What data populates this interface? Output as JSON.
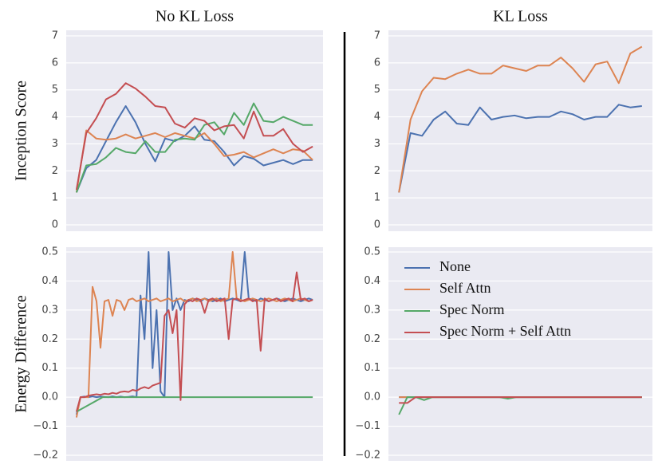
{
  "chart_data": [
    {
      "type": "line",
      "title": "No KL Loss",
      "ylabel": "Inception Score",
      "ylim": [
        0,
        7
      ],
      "yticks": [
        0,
        1,
        2,
        3,
        4,
        5,
        6,
        7
      ],
      "grid": true,
      "series": [
        {
          "name": "None",
          "color": "#4c72b0",
          "values": [
            1.2,
            2.1,
            2.4,
            3.1,
            3.8,
            4.4,
            3.8,
            3.0,
            2.35,
            3.2,
            3.1,
            3.3,
            3.65,
            3.15,
            3.1,
            2.7,
            2.2,
            2.55,
            2.45,
            2.2,
            2.3,
            2.4,
            2.25,
            2.4,
            2.4
          ]
        },
        {
          "name": "Self Attn",
          "color": "#dd8452",
          "values": [
            1.2,
            3.5,
            3.2,
            3.15,
            3.2,
            3.35,
            3.2,
            3.3,
            3.4,
            3.25,
            3.4,
            3.3,
            3.2,
            3.4,
            3.0,
            2.55,
            2.6,
            2.7,
            2.5,
            2.65,
            2.8,
            2.65,
            2.8,
            2.75,
            2.4
          ]
        },
        {
          "name": "Spec Norm",
          "color": "#55a868",
          "values": [
            1.2,
            2.2,
            2.25,
            2.5,
            2.85,
            2.7,
            2.65,
            3.1,
            2.7,
            2.7,
            3.15,
            3.2,
            3.15,
            3.7,
            3.8,
            3.35,
            4.15,
            3.7,
            4.5,
            3.85,
            3.8,
            4.0,
            3.85,
            3.7,
            3.7
          ]
        },
        {
          "name": "Spec Norm + Self Attn",
          "color": "#c44e52",
          "values": [
            1.3,
            3.4,
            3.95,
            4.65,
            4.85,
            5.25,
            5.05,
            4.75,
            4.4,
            4.35,
            3.75,
            3.6,
            3.95,
            3.85,
            3.5,
            3.65,
            3.7,
            3.2,
            4.2,
            3.3,
            3.3,
            3.55,
            3.0,
            2.7,
            2.9
          ]
        }
      ]
    },
    {
      "type": "line",
      "title": "KL Loss",
      "ylim": [
        0,
        7
      ],
      "yticks": [
        0,
        1,
        2,
        3,
        4,
        5,
        6,
        7
      ],
      "grid": true,
      "series": [
        {
          "name": "None",
          "color": "#4c72b0",
          "values": [
            1.2,
            3.4,
            3.3,
            3.9,
            4.2,
            3.75,
            3.7,
            4.35,
            3.9,
            4.0,
            4.05,
            3.95,
            4.0,
            4.0,
            4.2,
            4.1,
            3.9,
            4.0,
            4.0,
            4.45,
            4.35,
            4.4
          ]
        },
        {
          "name": "Self Attn",
          "color": "#dd8452",
          "values": [
            1.2,
            3.9,
            4.95,
            5.45,
            5.4,
            5.6,
            5.75,
            5.6,
            5.6,
            5.9,
            5.8,
            5.7,
            5.9,
            5.9,
            6.2,
            5.8,
            5.3,
            5.95,
            6.05,
            5.25,
            6.35,
            6.6
          ]
        }
      ]
    },
    {
      "type": "line",
      "ylabel": "Energy Difference",
      "ylim": [
        -0.2,
        0.5
      ],
      "grid": true,
      "yticks": [
        {
          "value": -0.2,
          "label": "−0.2"
        },
        {
          "value": -0.1,
          "label": "−0.1"
        },
        {
          "value": 0,
          "label": "0.0"
        },
        {
          "value": 0.1,
          "label": "0.1"
        },
        {
          "value": 0.2,
          "label": "0.2"
        },
        {
          "value": 0.3,
          "label": "0.3"
        },
        {
          "value": 0.4,
          "label": "0.4"
        },
        {
          "value": 0.5,
          "label": "0.5"
        }
      ],
      "series": [
        {
          "name": "None",
          "color": "#4c72b0",
          "values": [
            -0.06,
            0.0,
            0.002,
            0.0,
            0.003,
            0.0,
            0.002,
            0.001,
            0.0,
            0.003,
            0.0,
            0.002,
            0.0,
            0.001,
            0.003,
            0.0,
            0.35,
            0.2,
            0.5,
            0.1,
            0.3,
            0.02,
            0.0,
            0.5,
            0.3,
            0.34,
            0.3,
            0.335,
            0.33,
            0.34,
            0.335,
            0.33,
            0.34,
            0.335,
            0.33,
            0.335,
            0.34,
            0.33,
            0.335,
            0.34,
            0.335,
            0.33,
            0.5,
            0.34,
            0.335,
            0.33,
            0.34,
            0.335,
            0.33,
            0.335,
            0.34,
            0.335,
            0.33,
            0.335,
            0.34,
            0.335,
            0.33,
            0.335,
            0.34,
            0.335
          ]
        },
        {
          "name": "Self Attn",
          "color": "#dd8452",
          "values": [
            -0.07,
            0.0,
            0.0,
            0.0,
            0.38,
            0.33,
            0.17,
            0.33,
            0.335,
            0.28,
            0.335,
            0.33,
            0.3,
            0.335,
            0.34,
            0.33,
            0.335,
            0.34,
            0.33,
            0.335,
            0.34,
            0.33,
            0.335,
            0.34,
            0.33,
            0.335,
            0.34,
            0.33,
            0.335,
            0.34,
            0.33,
            0.335,
            0.34,
            0.33,
            0.335,
            0.34,
            0.33,
            0.335,
            0.34,
            0.5,
            0.34,
            0.335,
            0.33,
            0.335,
            0.34,
            0.335,
            0.33,
            0.335,
            0.34,
            0.335,
            0.33,
            0.335,
            0.34,
            0.335,
            0.33,
            0.335,
            0.34,
            0.335,
            0.33,
            0.335
          ]
        },
        {
          "name": "Spec Norm",
          "color": "#55a868",
          "values": [
            -0.05,
            0.0,
            0.0,
            0.0,
            0.0,
            0.0,
            0.0,
            0.0,
            0.0,
            0.0
          ]
        },
        {
          "name": "Spec Norm + Self Attn",
          "color": "#c44e52",
          "values": [
            -0.05,
            0.0,
            0.0,
            0.005,
            0.008,
            0.01,
            0.008,
            0.012,
            0.01,
            0.015,
            0.012,
            0.018,
            0.02,
            0.018,
            0.025,
            0.022,
            0.03,
            0.035,
            0.03,
            0.04,
            0.045,
            0.05,
            0.28,
            0.3,
            0.22,
            0.3,
            -0.01,
            0.32,
            0.335,
            0.33,
            0.34,
            0.335,
            0.29,
            0.335,
            0.34,
            0.33,
            0.335,
            0.34,
            0.2,
            0.335,
            0.34,
            0.33,
            0.335,
            0.34,
            0.33,
            0.335,
            0.16,
            0.34,
            0.33,
            0.335,
            0.34,
            0.33,
            0.335,
            0.34,
            0.33,
            0.43,
            0.335,
            0.34,
            0.33,
            0.335
          ]
        }
      ]
    },
    {
      "type": "line",
      "ylim": [
        -0.2,
        0.5
      ],
      "grid": true,
      "legend": "upper left",
      "yticks": [
        {
          "value": -0.2,
          "label": "−0.2"
        },
        {
          "value": -0.1,
          "label": "−0.1"
        },
        {
          "value": 0,
          "label": "0.0"
        },
        {
          "value": 0.1,
          "label": "0.1"
        },
        {
          "value": 0.2,
          "label": "0.2"
        },
        {
          "value": 0.3,
          "label": "0.3"
        },
        {
          "value": 0.4,
          "label": "0.4"
        },
        {
          "value": 0.5,
          "label": "0.5"
        }
      ],
      "series": [
        {
          "name": "None",
          "color": "#4c72b0",
          "values": [
            0.0,
            0.0,
            0.0,
            0.0,
            0.0,
            0.0,
            0.0,
            0.0,
            0.0,
            0.0,
            0.0,
            0.0,
            0.0,
            0.0,
            0.0,
            0.0,
            0.0,
            0.0,
            0.0,
            0.0,
            0.0,
            0.0,
            0.0,
            0.0,
            0.0,
            0.0,
            0.0,
            0.0,
            0.0,
            0.0
          ]
        },
        {
          "name": "Self Attn",
          "color": "#dd8452",
          "values": [
            0.0,
            0.0,
            0.0,
            0.0,
            0.0,
            0.0,
            0.0,
            0.0,
            0.0,
            0.0,
            0.0,
            0.0,
            0.0,
            0.0,
            0.0,
            0.0,
            0.0,
            0.0,
            0.0,
            0.0,
            0.0,
            0.0,
            0.0,
            0.0,
            0.0,
            0.0,
            0.0,
            0.0,
            0.0,
            0.0
          ]
        },
        {
          "name": "Spec Norm",
          "color": "#55a868",
          "values": [
            -0.06,
            0.0,
            0.0,
            -0.01,
            0.0,
            0.0,
            0.0,
            0.0,
            0.0,
            0.0,
            0.0,
            0.0,
            0.0,
            -0.005,
            0.0,
            0.0,
            0.0,
            0.0,
            0.0,
            0.0,
            0.0,
            0.0,
            0.0,
            0.0,
            0.0,
            0.0,
            0.0,
            0.0,
            0.0,
            0.0
          ]
        },
        {
          "name": "Spec Norm + Self Attn",
          "color": "#c44e52",
          "values": [
            -0.02,
            -0.02,
            0.0,
            0.0,
            0.0,
            0.0,
            0.0,
            0.0,
            0.0,
            0.0,
            0.0,
            0.0,
            0.0,
            0.0,
            0.0,
            0.0,
            0.0,
            0.0,
            0.0,
            0.0,
            0.0,
            0.0,
            0.0,
            0.0,
            0.0,
            0.0,
            0.0,
            0.0,
            0.0,
            0.0
          ]
        }
      ]
    }
  ]
}
